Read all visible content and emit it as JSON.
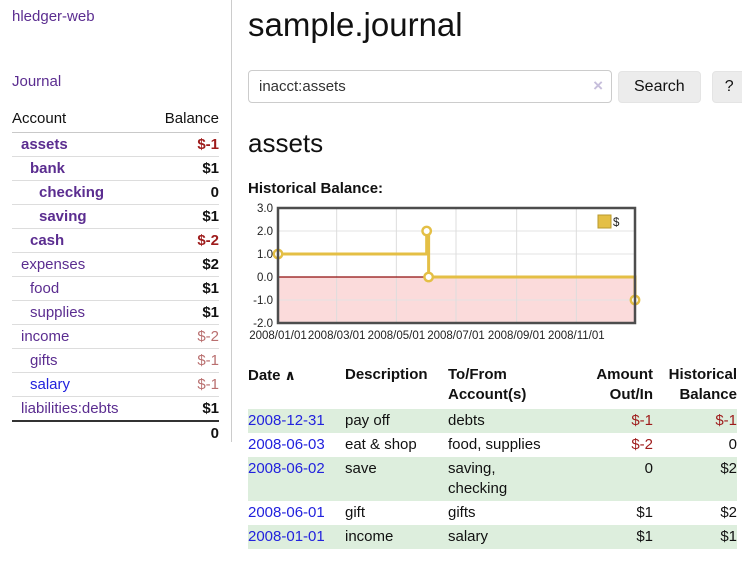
{
  "app": {
    "brand": "hledger-web"
  },
  "sidebar": {
    "journal_link": "Journal",
    "headers": {
      "account": "Account",
      "balance": "Balance"
    },
    "accounts": [
      {
        "name": "assets",
        "indent": 1,
        "bold": true,
        "link": "purple",
        "balance": "$-1",
        "style": "neg-strong"
      },
      {
        "name": "bank",
        "indent": 2,
        "bold": true,
        "link": "purple",
        "balance": "$1",
        "style": "pos-strong"
      },
      {
        "name": "checking",
        "indent": 3,
        "bold": true,
        "link": "purple",
        "balance": "0",
        "style": "pos-strong"
      },
      {
        "name": "saving",
        "indent": 3,
        "bold": true,
        "link": "purple",
        "balance": "$1",
        "style": "pos-strong"
      },
      {
        "name": "cash",
        "indent": 2,
        "bold": true,
        "link": "purple",
        "balance": "$-2",
        "style": "neg-strong"
      },
      {
        "name": "expenses",
        "indent": 1,
        "bold": false,
        "link": "purple",
        "balance": "$2",
        "style": "pos-strong"
      },
      {
        "name": "food",
        "indent": 2,
        "bold": false,
        "link": "purple",
        "balance": "$1",
        "style": "pos-strong"
      },
      {
        "name": "supplies",
        "indent": 2,
        "bold": false,
        "link": "purple",
        "balance": "$1",
        "style": "pos-strong"
      },
      {
        "name": "income",
        "indent": 1,
        "bold": false,
        "link": "purple",
        "balance": "$-2",
        "style": "neg-muted"
      },
      {
        "name": "gifts",
        "indent": 2,
        "bold": false,
        "link": "purple",
        "balance": "$-1",
        "style": "neg-muted"
      },
      {
        "name": "salary",
        "indent": 2,
        "bold": false,
        "link": "blue",
        "balance": "$-1",
        "style": "neg-muted"
      },
      {
        "name": "liabilities:debts",
        "indent": 1,
        "bold": false,
        "link": "purple",
        "balance": "$1",
        "style": "pos-strong"
      }
    ],
    "total": "0"
  },
  "header": {
    "title": "sample.journal"
  },
  "search": {
    "value": "inacct:assets",
    "clear_icon": "×",
    "button_label": "Search",
    "help_label": "?"
  },
  "account_page": {
    "heading": "assets",
    "chart_label": "Historical Balance:"
  },
  "chart_data": {
    "type": "line",
    "step": true,
    "title": "Historical Balance:",
    "legend": "$",
    "xlim": [
      "2008-01-01",
      "2008-12-31"
    ],
    "ylim": [
      -2,
      3
    ],
    "y_ticks": [
      "3.0",
      "2.0",
      "1.0",
      "0.0",
      "-1.0",
      "-2.0"
    ],
    "x_ticks": [
      "2008/01/01",
      "2008/03/01",
      "2008/05/01",
      "2008/07/01",
      "2008/09/01",
      "2008/11/01"
    ],
    "series": [
      {
        "name": "$",
        "points": [
          [
            "2008-01-01",
            1
          ],
          [
            "2008-06-01",
            2
          ],
          [
            "2008-06-03",
            0
          ],
          [
            "2008-12-31",
            -1
          ]
        ]
      }
    ],
    "colors": {
      "line": "#e4bf45",
      "legend_border": "#b89a2e",
      "negative_region": "#fbdbdb",
      "zero_line": "#8f0e0e",
      "border": "#4d4d4d",
      "grid": "#ddd"
    }
  },
  "register": {
    "headers": {
      "date": "Date",
      "sort_arrow": "∧",
      "description": "Description",
      "accounts": "To/From Account(s)",
      "amount": "Amount Out/In",
      "balance": "Historical Balance"
    },
    "rows": [
      {
        "date": "2008-12-31",
        "description": "pay off",
        "accounts": "debts",
        "amount": "$-1",
        "amount_neg": true,
        "balance": "$-1",
        "balance_neg": true
      },
      {
        "date": "2008-06-03",
        "description": "eat & shop",
        "accounts": "food, supplies",
        "amount": "$-2",
        "amount_neg": true,
        "balance": "0",
        "balance_neg": false
      },
      {
        "date": "2008-06-02",
        "description": "save",
        "accounts": "saving, checking",
        "amount": "0",
        "amount_neg": false,
        "balance": "$2",
        "balance_neg": false
      },
      {
        "date": "2008-06-01",
        "description": "gift",
        "accounts": "gifts",
        "amount": "$1",
        "amount_neg": false,
        "balance": "$2",
        "balance_neg": false
      },
      {
        "date": "2008-01-01",
        "description": "income",
        "accounts": "salary",
        "amount": "$1",
        "amount_neg": false,
        "balance": "$1",
        "balance_neg": false
      }
    ]
  },
  "colors": {
    "purple_link": "#5b2d90",
    "blue_link": "#2222dd",
    "negative_strong": "#9e1b1b",
    "negative_muted": "#b96f6f",
    "row_stripe_green": "#ddeedd"
  }
}
